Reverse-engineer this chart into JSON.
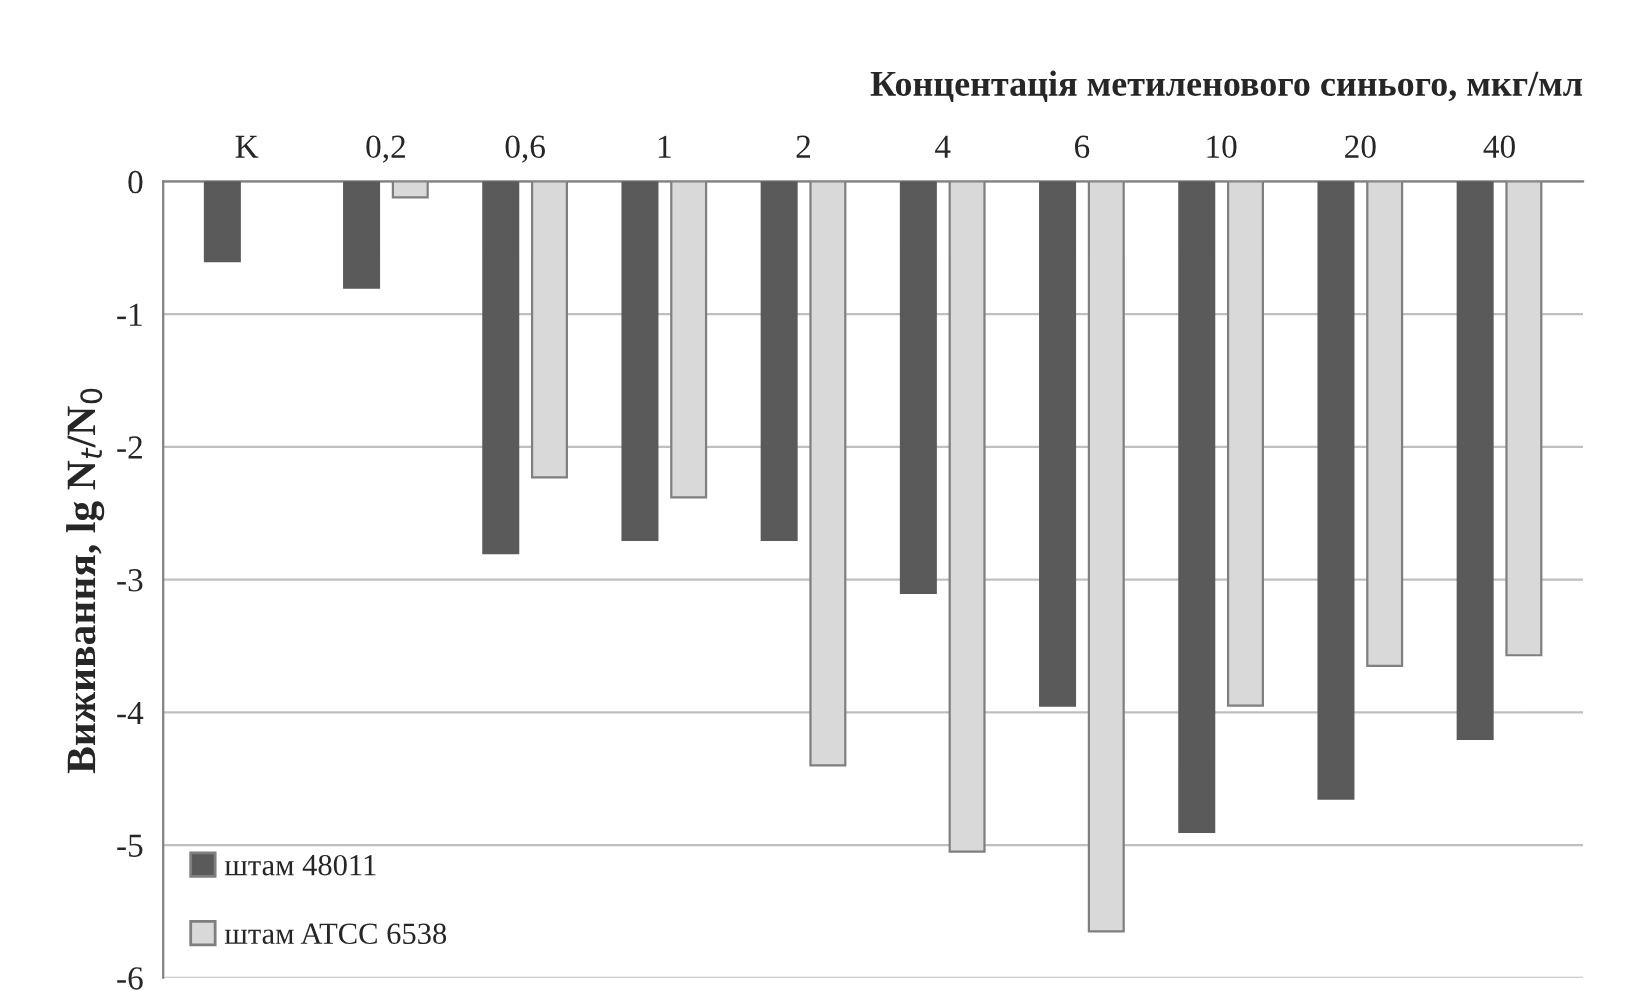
{
  "chart_data": {
    "type": "bar",
    "xlabel": "Концентація метиленового синього, мкг/мл",
    "ylabel": "Виживання, lg N$_{t}$/N$_{0}$",
    "categories": [
      "K",
      "0,2",
      "0,6",
      "1",
      "2",
      "4",
      "6",
      "10",
      "20",
      "40"
    ],
    "series": [
      {
        "name": "штам 48011",
        "color": "#5a5a5a",
        "values": [
          -0.6,
          -0.8,
          -2.8,
          -2.7,
          -2.7,
          -3.1,
          -3.95,
          -4.9,
          -4.65,
          -4.2
        ]
      },
      {
        "name": "штам ATCC 6538",
        "color": "#d9d9d9",
        "values": [
          null,
          -0.12,
          -2.23,
          -2.38,
          -4.4,
          -5.05,
          -5.65,
          -3.95,
          -3.65,
          -3.57
        ]
      }
    ],
    "ylim": [
      -6,
      0
    ],
    "yticks": [
      -6,
      -5,
      -4,
      -3,
      -2,
      -1,
      0
    ],
    "grid": "y",
    "legend": "bottom left"
  }
}
